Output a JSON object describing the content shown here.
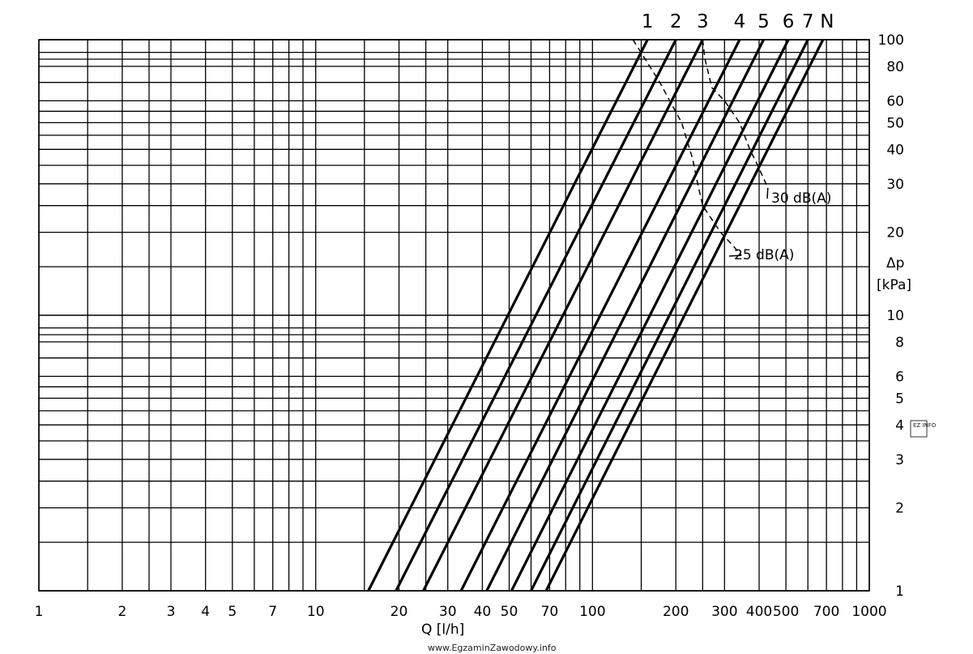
{
  "watermark": "www.EgzaminZawodowy.info",
  "stamp": "EZ INFO",
  "chart_data": {
    "type": "line",
    "x_scale": "log",
    "y_scale": "log",
    "xlim": [
      1,
      1000
    ],
    "ylim": [
      1,
      100
    ],
    "grid": true,
    "xlabel": "Q  [l/h]",
    "ylabel": "Δp\n[kPa]",
    "xticks": [
      {
        "value": 1,
        "label": "1"
      },
      {
        "value": 2,
        "label": "2"
      },
      {
        "value": 3,
        "label": "3"
      },
      {
        "value": 4,
        "label": "4"
      },
      {
        "value": 5,
        "label": "5"
      },
      {
        "value": 7,
        "label": "7"
      },
      {
        "value": 10,
        "label": "10"
      },
      {
        "value": 20,
        "label": "20"
      },
      {
        "value": 30,
        "label": "30"
      },
      {
        "value": 40,
        "label": "40"
      },
      {
        "value": 50,
        "label": "50"
      },
      {
        "value": 70,
        "label": "70"
      },
      {
        "value": 100,
        "label": "100"
      },
      {
        "value": 200,
        "label": "200"
      },
      {
        "value": 300,
        "label": "300"
      },
      {
        "value": 400,
        "label": "400"
      },
      {
        "value": 500,
        "label": "500"
      },
      {
        "value": 700,
        "label": "700"
      },
      {
        "value": 1000,
        "label": "1000"
      }
    ],
    "yticks": [
      {
        "value": 1,
        "label": "1"
      },
      {
        "value": 2,
        "label": "2"
      },
      {
        "value": 3,
        "label": "3"
      },
      {
        "value": 4,
        "label": "4"
      },
      {
        "value": 5,
        "label": "5"
      },
      {
        "value": 6,
        "label": "6"
      },
      {
        "value": 8,
        "label": "8"
      },
      {
        "value": 10,
        "label": "10"
      },
      {
        "value": 20,
        "label": "20"
      },
      {
        "value": 30,
        "label": "30"
      },
      {
        "value": 40,
        "label": "40"
      },
      {
        "value": 50,
        "label": "50"
      },
      {
        "value": 60,
        "label": "60"
      },
      {
        "value": 80,
        "label": "80"
      },
      {
        "value": 100,
        "label": "100"
      }
    ],
    "x_gridlines": [
      1,
      1.5,
      2,
      2.5,
      3,
      4,
      5,
      6,
      7,
      8,
      9,
      10,
      15,
      20,
      25,
      30,
      40,
      50,
      60,
      70,
      80,
      90,
      100,
      150,
      200,
      250,
      300,
      400,
      500,
      600,
      700,
      800,
      900,
      1000
    ],
    "y_gridlines": [
      1,
      1.5,
      2,
      2.5,
      3,
      3.5,
      4,
      4.5,
      5,
      5.5,
      6,
      7,
      8,
      8.5,
      9,
      10,
      15,
      20,
      25,
      30,
      35,
      40,
      45,
      50,
      55,
      60,
      70,
      80,
      85,
      90,
      100
    ],
    "series": [
      {
        "name": "1",
        "points": [
          [
            15.5,
            1
          ],
          [
            158,
            100
          ]
        ]
      },
      {
        "name": "2",
        "points": [
          [
            19.5,
            1
          ],
          [
            200,
            100
          ]
        ]
      },
      {
        "name": "3",
        "points": [
          [
            24.5,
            1
          ],
          [
            250,
            100
          ]
        ]
      },
      {
        "name": "4",
        "points": [
          [
            33.5,
            1
          ],
          [
            340,
            100
          ]
        ]
      },
      {
        "name": "5",
        "points": [
          [
            41.5,
            1
          ],
          [
            415,
            100
          ]
        ]
      },
      {
        "name": "6",
        "points": [
          [
            51,
            1
          ],
          [
            510,
            100
          ]
        ]
      },
      {
        "name": "7",
        "points": [
          [
            60,
            1
          ],
          [
            600,
            100
          ]
        ]
      },
      {
        "name": "N",
        "points": [
          [
            68,
            1
          ],
          [
            680,
            100
          ]
        ]
      }
    ],
    "noise_curves": [
      {
        "name": "30 dB(A)",
        "label": "30  dB(A)",
        "points": [
          [
            250,
            100
          ],
          [
            255,
            85
          ],
          [
            270,
            67
          ],
          [
            300,
            60
          ],
          [
            340,
            50
          ],
          [
            370,
            40
          ],
          [
            395,
            35
          ],
          [
            430,
            29
          ]
        ]
      },
      {
        "name": "25 dB(A)",
        "label": "25  dB(A)",
        "points": [
          [
            140,
            100
          ],
          [
            155,
            85
          ],
          [
            175,
            70
          ],
          [
            210,
            50
          ],
          [
            230,
            37
          ],
          [
            240,
            30
          ],
          [
            250,
            25
          ],
          [
            290,
            20
          ],
          [
            320,
            18
          ],
          [
            345,
            16.5
          ]
        ]
      }
    ]
  }
}
